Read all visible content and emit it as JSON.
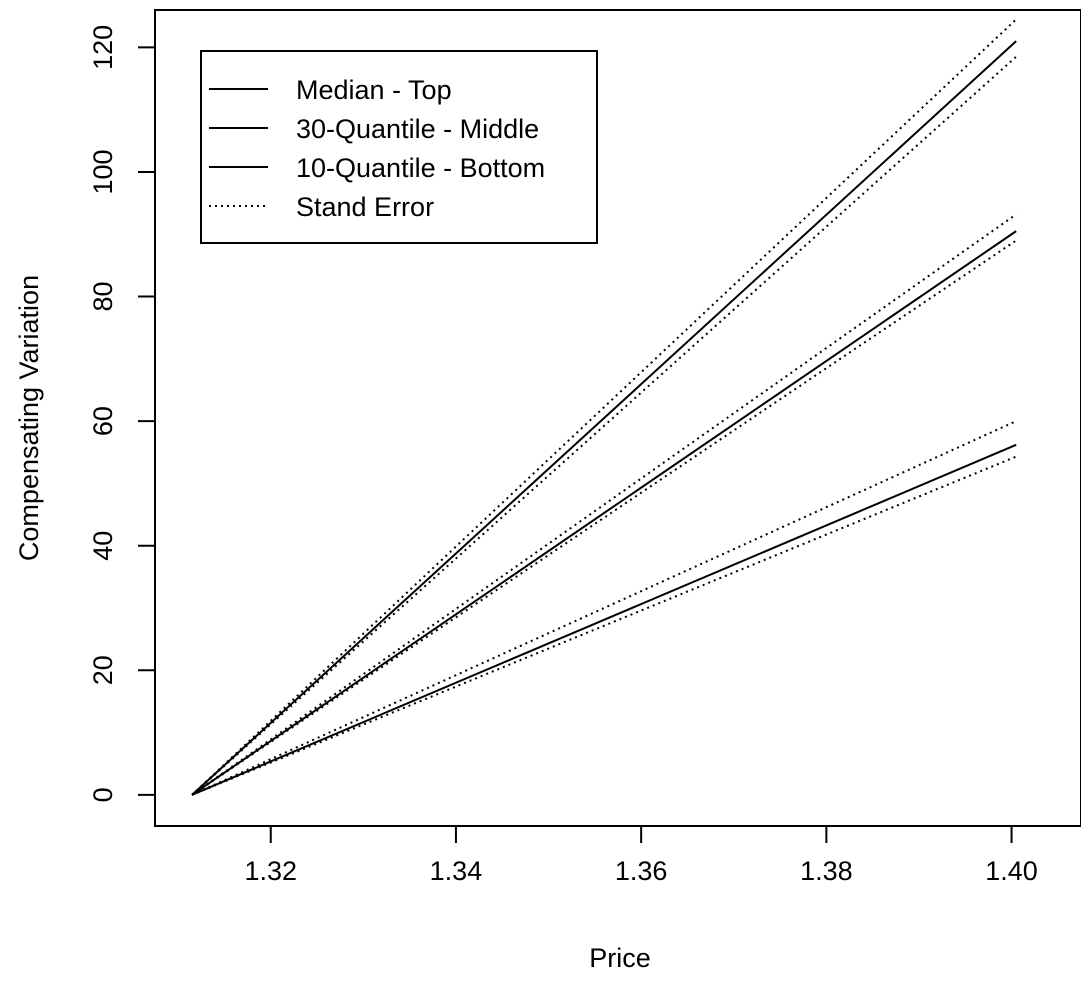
{
  "chart_data": {
    "type": "line",
    "xlabel": "Price",
    "ylabel": "Compensating Variation",
    "xlim": [
      1.3075,
      1.4075
    ],
    "ylim": [
      -5,
      126
    ],
    "x_ticks": [
      1.32,
      1.34,
      1.36,
      1.38,
      1.4
    ],
    "x_tick_labels": [
      "1.32",
      "1.34",
      "1.36",
      "1.38",
      "1.40"
    ],
    "y_ticks": [
      0,
      20,
      40,
      60,
      80,
      100,
      120
    ],
    "y_tick_labels": [
      "0",
      "20",
      "40",
      "60",
      "80",
      "100",
      "120"
    ],
    "grid": false,
    "legend_position": "top-left",
    "legend": [
      {
        "label": "Median - Top",
        "style": "solid"
      },
      {
        "label": "30-Quantile - Middle",
        "style": "solid"
      },
      {
        "label": "10-Quantile - Bottom",
        "style": "solid"
      },
      {
        "label": "Stand Error",
        "style": "dotted"
      }
    ],
    "series": [
      {
        "name": "Median - Top",
        "style": "solid",
        "x": [
          1.3115,
          1.4005
        ],
        "y": [
          0,
          121
        ]
      },
      {
        "style": "dotted",
        "x": [
          1.3115,
          1.4005
        ],
        "y": [
          0,
          124.5
        ]
      },
      {
        "style": "dotted",
        "x": [
          1.3115,
          1.4005
        ],
        "y": [
          0,
          118.5
        ]
      },
      {
        "name": "30-Quantile - Middle",
        "style": "solid",
        "x": [
          1.3115,
          1.4005
        ],
        "y": [
          0,
          90.5
        ]
      },
      {
        "style": "dotted",
        "x": [
          1.3115,
          1.4005
        ],
        "y": [
          0,
          93.2
        ]
      },
      {
        "style": "dotted",
        "x": [
          1.3115,
          1.4005
        ],
        "y": [
          0,
          89
        ]
      },
      {
        "name": "10-Quantile - Bottom",
        "style": "solid",
        "x": [
          1.3115,
          1.4005
        ],
        "y": [
          0,
          56.2
        ]
      },
      {
        "style": "dotted",
        "x": [
          1.3115,
          1.4005
        ],
        "y": [
          0,
          60
        ]
      },
      {
        "style": "dotted",
        "x": [
          1.3115,
          1.4005
        ],
        "y": [
          0,
          54.3
        ]
      }
    ]
  }
}
